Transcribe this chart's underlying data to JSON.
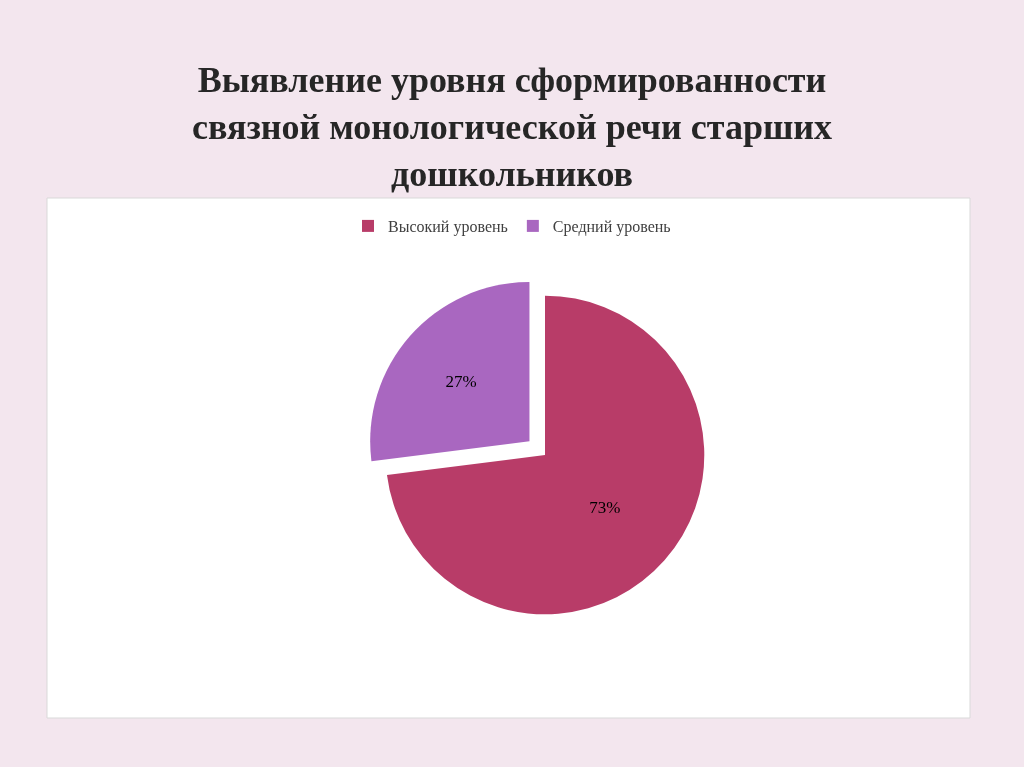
{
  "chart_data": {
    "type": "pie",
    "title": "Выявление уровня сформированности\nсвязной монологической речи старших\nдошкольников",
    "categories": [
      "Высокий уровень",
      "Средний уровень"
    ],
    "values": [
      73,
      27
    ],
    "colors": [
      "#b83c68",
      "#a967c0"
    ],
    "value_labels": [
      "73%",
      "27%"
    ],
    "legend": "top"
  }
}
